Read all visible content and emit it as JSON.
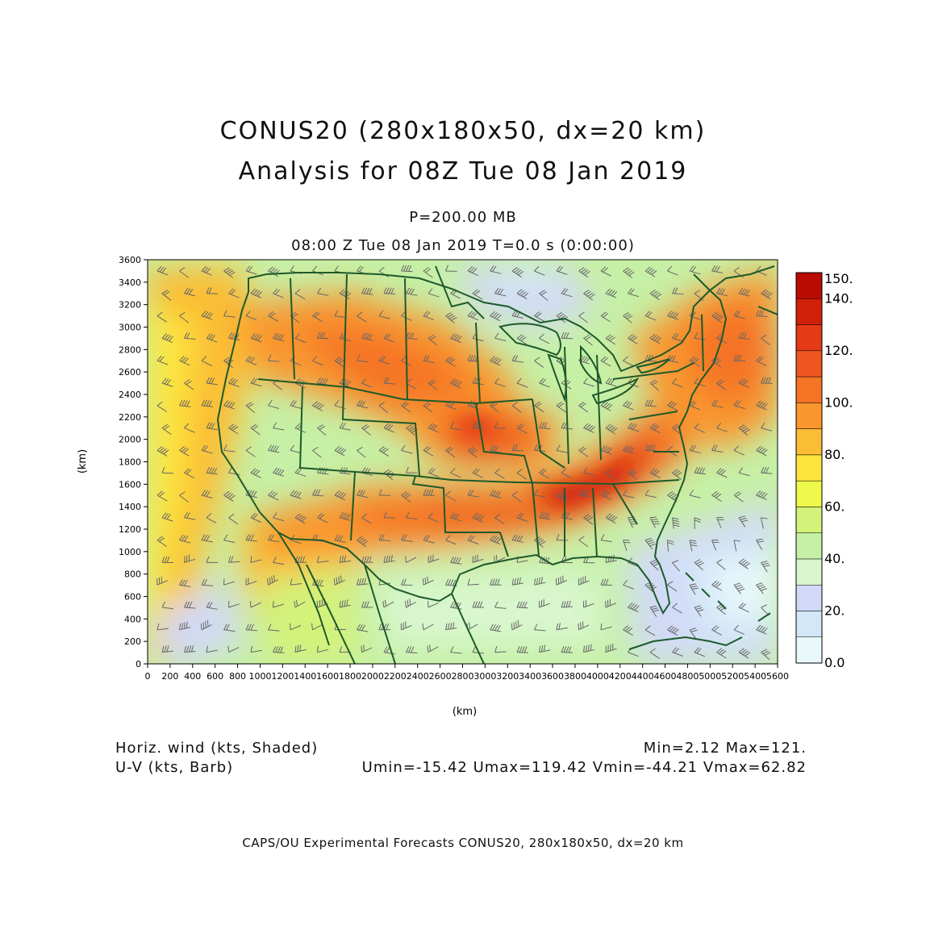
{
  "header": {
    "title_line1": "CONUS20 (280x180x50, dx=20 km)",
    "title_line2": "Analysis for 08Z Tue 08 Jan 2019",
    "level": "P=200.00 MB",
    "valid_time": "08:00 Z Tue 08 Jan 2019    T=0.0 s (0:00:00)"
  },
  "map": {
    "x_axis_label": "(km)",
    "y_axis_label": "(km)",
    "x_ticks": [
      "0",
      "200",
      "400",
      "600",
      "800",
      "1000",
      "1200",
      "1400",
      "1600",
      "1800",
      "2000",
      "2200",
      "2400",
      "2600",
      "2800",
      "3000",
      "3200",
      "3400",
      "3600",
      "3800",
      "4000",
      "4200",
      "4400",
      "4600",
      "4800",
      "5000",
      "5200",
      "5400",
      "5600"
    ],
    "y_ticks": [
      "0",
      "200",
      "400",
      "600",
      "800",
      "1000",
      "1200",
      "1400",
      "1600",
      "1800",
      "2000",
      "2200",
      "2400",
      "2600",
      "2800",
      "3000",
      "3200",
      "3400",
      "3600"
    ],
    "x_range_km": [
      0,
      5600
    ],
    "y_range_km": [
      0,
      3600
    ],
    "boundary_color": "#1d5a2a",
    "barb_color": "#666666"
  },
  "colorbar": {
    "labels": [
      "150.",
      "140.",
      "120.",
      "100.",
      "80.",
      "60.",
      "40.",
      "20.",
      "0.0"
    ],
    "bins": [
      {
        "from": 0,
        "to": 10,
        "color": "#e8f8fb"
      },
      {
        "from": 10,
        "to": 20,
        "color": "#d3e8f7"
      },
      {
        "from": 20,
        "to": 30,
        "color": "#d2d9f8"
      },
      {
        "from": 30,
        "to": 40,
        "color": "#d9f7cf"
      },
      {
        "from": 40,
        "to": 50,
        "color": "#c6f0a6"
      },
      {
        "from": 50,
        "to": 60,
        "color": "#d3f27a"
      },
      {
        "from": 60,
        "to": 70,
        "color": "#eef94b"
      },
      {
        "from": 70,
        "to": 80,
        "color": "#fde53d"
      },
      {
        "from": 80,
        "to": 90,
        "color": "#fbbd35"
      },
      {
        "from": 90,
        "to": 100,
        "color": "#f9962e"
      },
      {
        "from": 100,
        "to": 110,
        "color": "#f57325"
      },
      {
        "from": 110,
        "to": 120,
        "color": "#ef561f"
      },
      {
        "from": 120,
        "to": 130,
        "color": "#e43a15"
      },
      {
        "from": 130,
        "to": 140,
        "color": "#d12008"
      },
      {
        "from": 140,
        "to": 150,
        "color": "#b90a03"
      }
    ]
  },
  "field_info": {
    "left_line1": "Horiz. wind (kts, Shaded)",
    "left_line2": "U-V (kts, Barb)",
    "right_line1": "Min=2.12 Max=121.",
    "right_line2": "Umin=-15.42 Umax=119.42 Vmin=-44.21 Vmax=62.82"
  },
  "footer": {
    "credit": "CAPS/OU Experimental Forecasts   CONUS20, 280x180x50, dx=20 km"
  }
}
